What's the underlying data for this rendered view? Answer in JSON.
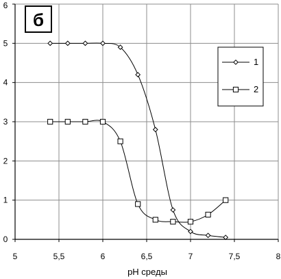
{
  "chart_data": {
    "type": "line",
    "panel_label": "б",
    "xlabel": "pH среды",
    "ylabel": "",
    "xlim": [
      5,
      8
    ],
    "ylim": [
      0,
      6
    ],
    "x_ticks": [
      5,
      5.5,
      6,
      6.5,
      7,
      7.5,
      8
    ],
    "x_tick_labels": [
      "5",
      "5,5",
      "6",
      "6,5",
      "7",
      "7,5",
      "8"
    ],
    "y_ticks": [
      0,
      1,
      2,
      3,
      4,
      5,
      6
    ],
    "y_tick_labels": [
      "0",
      "1",
      "2",
      "3",
      "4",
      "5",
      "6"
    ],
    "grid": true,
    "legend_position": "top-right",
    "series": [
      {
        "name": "1",
        "marker": "diamond",
        "x": [
          5.4,
          5.6,
          5.8,
          6.0,
          6.2,
          6.4,
          6.6,
          6.8,
          7.0,
          7.2,
          7.4
        ],
        "y": [
          5.0,
          5.0,
          5.0,
          5.0,
          4.9,
          4.2,
          2.8,
          0.75,
          0.2,
          0.1,
          0.05
        ]
      },
      {
        "name": "2",
        "marker": "square",
        "x": [
          5.4,
          5.6,
          5.8,
          6.0,
          6.2,
          6.4,
          6.6,
          6.8,
          7.0,
          7.2,
          7.4
        ],
        "y": [
          3.0,
          3.0,
          3.0,
          3.0,
          2.5,
          0.9,
          0.5,
          0.45,
          0.45,
          0.63,
          1.0
        ]
      }
    ]
  }
}
